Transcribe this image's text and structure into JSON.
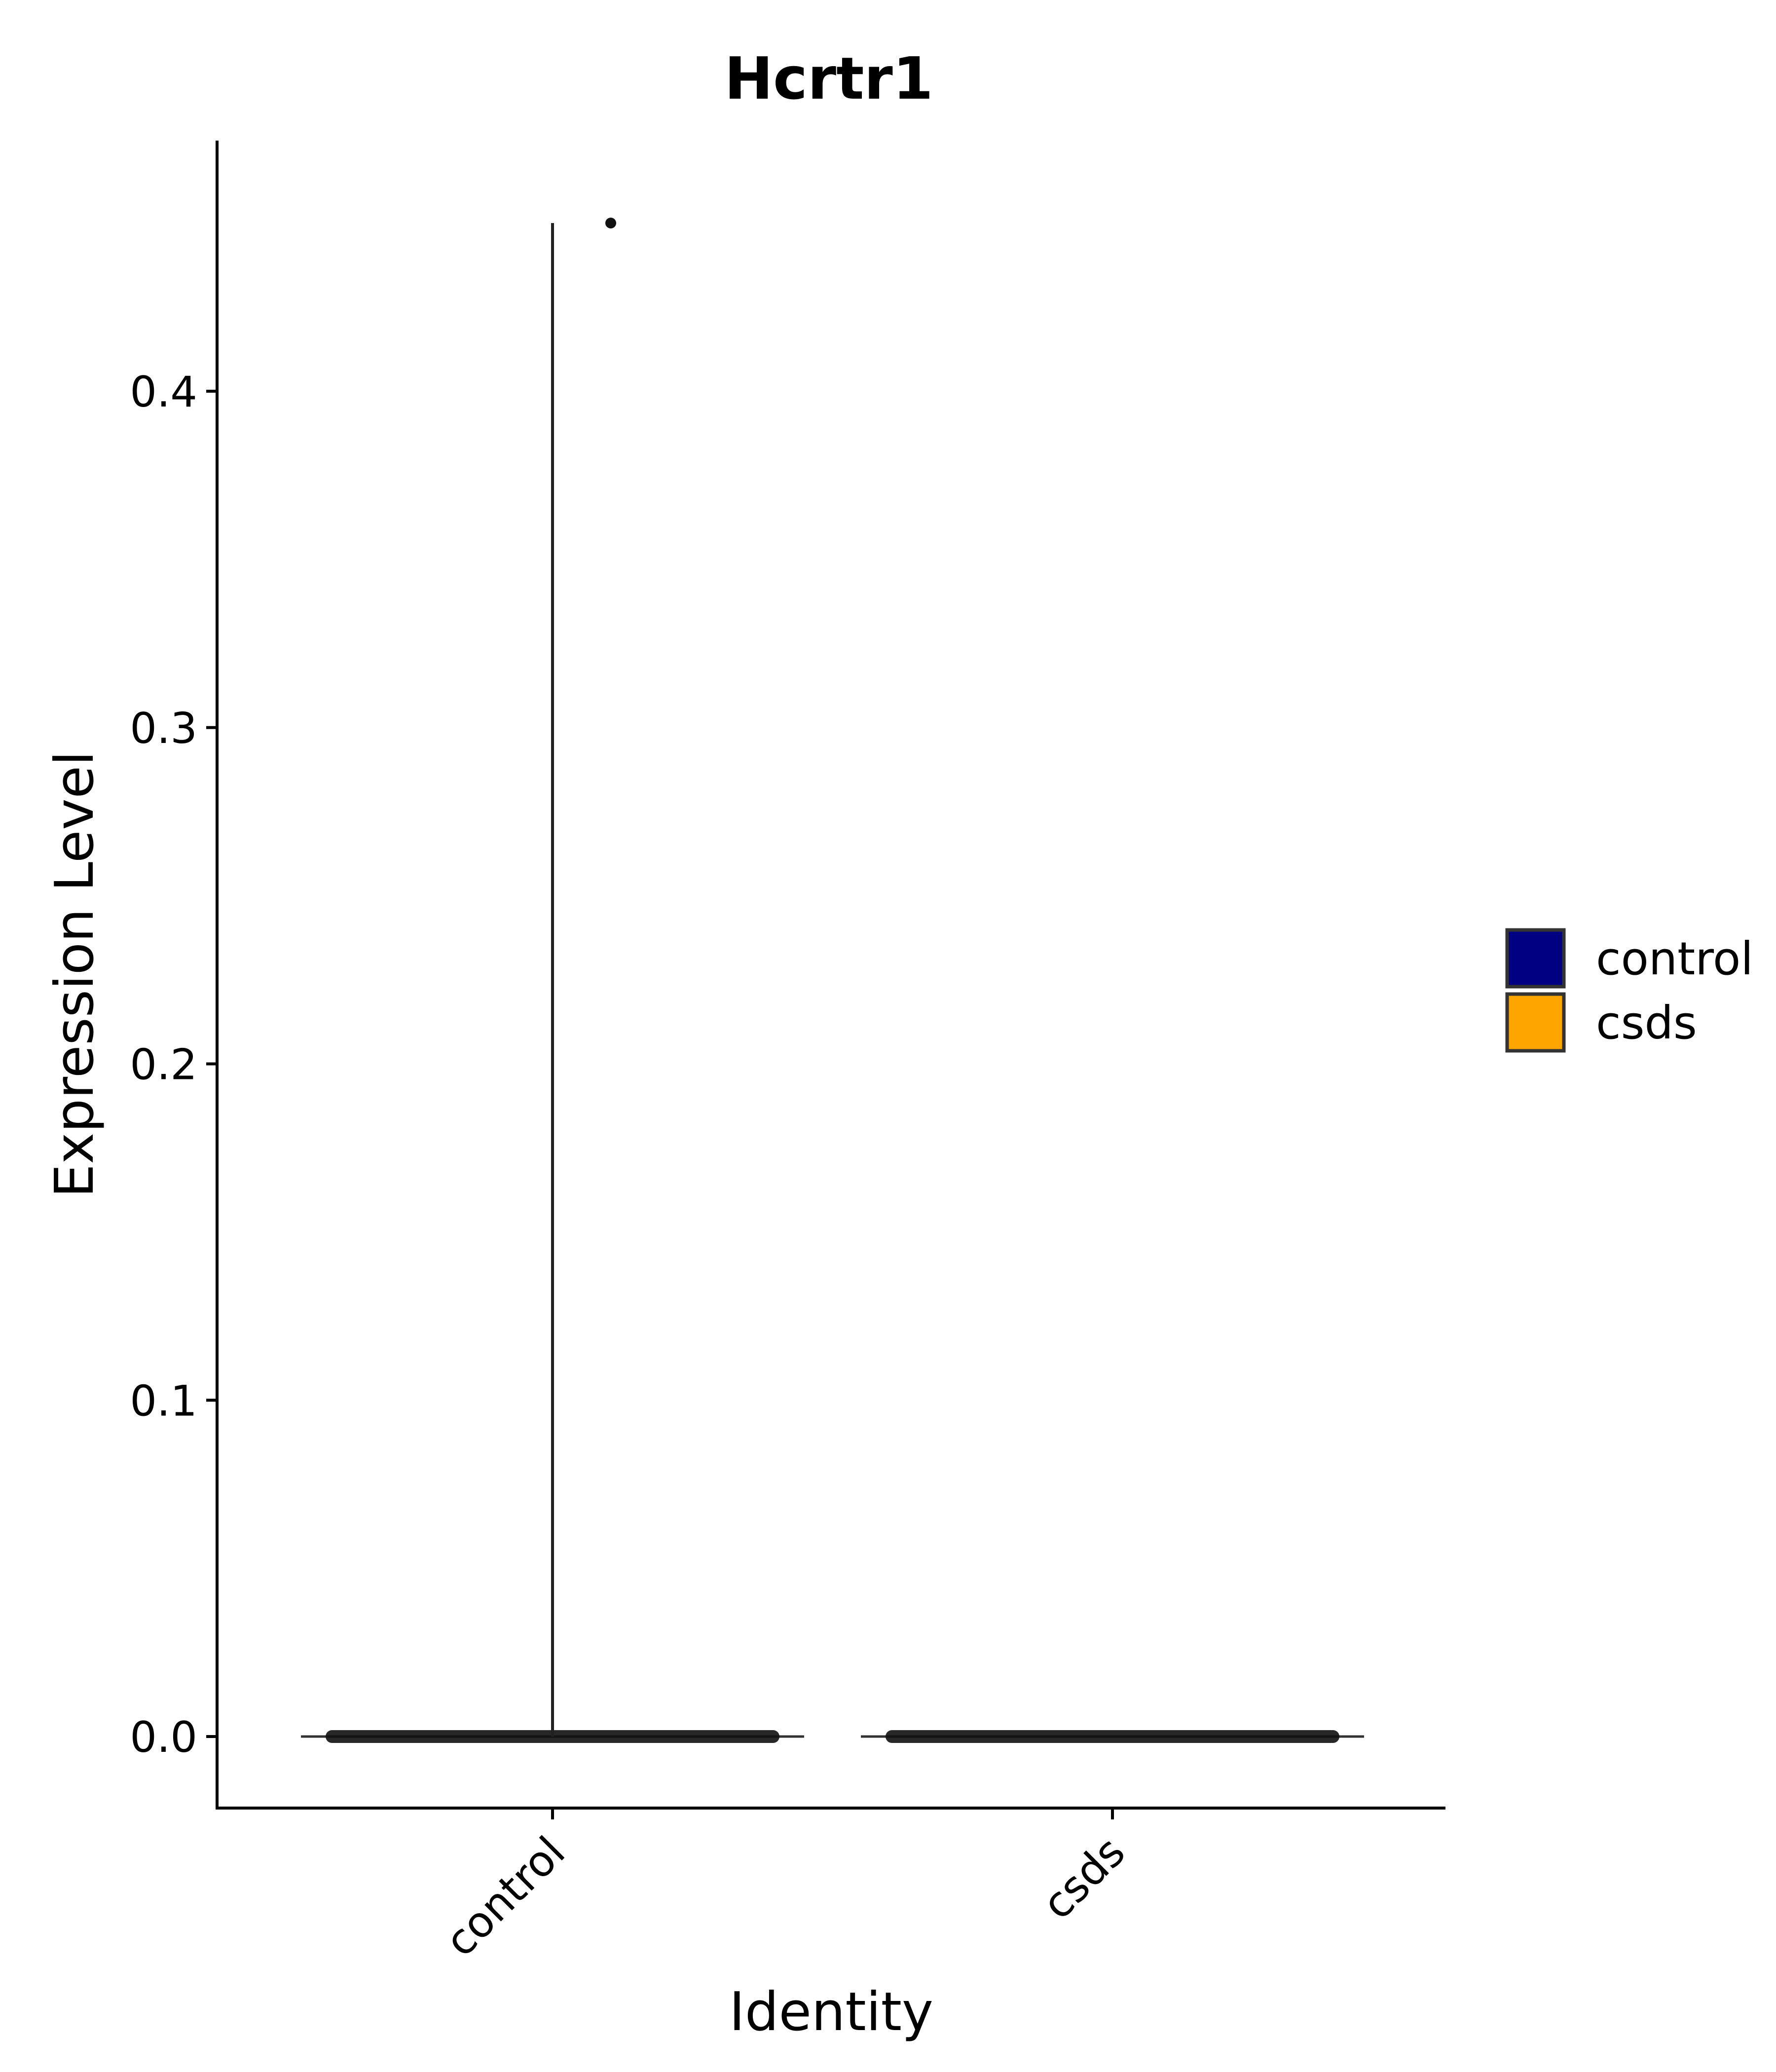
{
  "chart_data": {
    "type": "violin",
    "title": "Hcrtr1",
    "xlabel": "Identity",
    "ylabel": "Expression Level",
    "categories": [
      "control",
      "csds"
    ],
    "ylim": [
      -0.022,
      0.47
    ],
    "yticks": [
      0.0,
      0.1,
      0.2,
      0.3,
      0.4
    ],
    "ytick_labels": [
      "0.0",
      "0.1",
      "0.2",
      "0.3",
      "0.4"
    ],
    "grid": false,
    "legend": {
      "placement": "right",
      "entries": [
        {
          "label": "control",
          "color": "#000080"
        },
        {
          "label": "csds",
          "color": "#FFA500"
        }
      ]
    },
    "series": [
      {
        "name": "control",
        "color": "#000080",
        "min": 0.0,
        "max": 0.45,
        "outliers": [
          0.45
        ]
      },
      {
        "name": "csds",
        "color": "#FFA500",
        "min": 0.0,
        "max": 0.0,
        "outliers": []
      }
    ]
  }
}
